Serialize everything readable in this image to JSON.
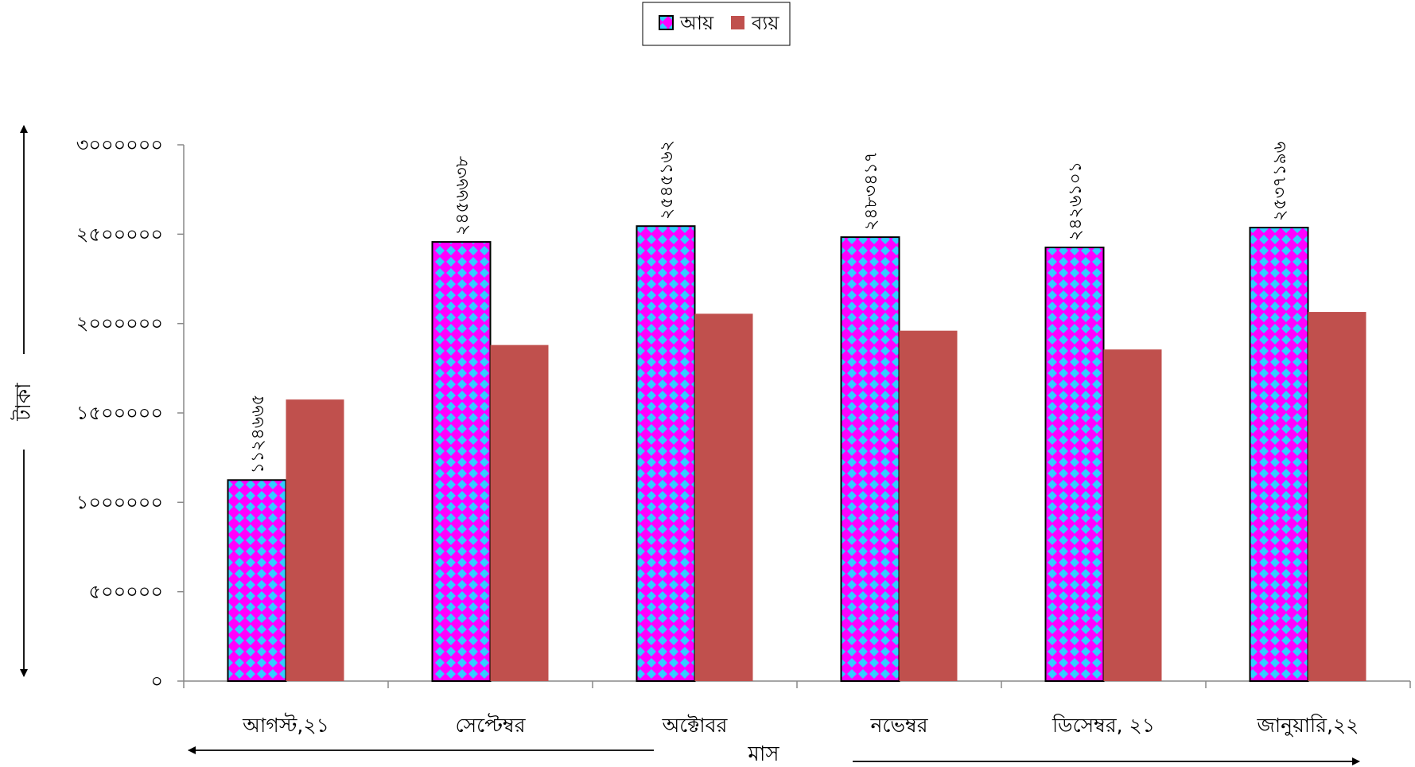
{
  "chart_data": {
    "type": "bar",
    "categories": [
      "আগস্ট,২১",
      "সেপ্টেম্বর",
      "অক্টোবর",
      "নভেম্বর",
      "ডিসেম্বর, ২১",
      "জানুয়ারি,২২"
    ],
    "series": [
      {
        "name": "আয়",
        "values": [
          1124665,
          2456638,
          2545162,
          2483417,
          2426101,
          2537196
        ],
        "data_labels": [
          "১১২৪৬৬৫",
          "২৪৫৬৬৩৮",
          "২৫৪৫১৬২",
          "২৪৮৩৪১৭",
          "২৪২৬১০১",
          "২৫৩৭১৯৬"
        ],
        "color": "#ff00ff",
        "pattern_color": "#33ccff"
      },
      {
        "name": "ব্যয়",
        "values": [
          1575000,
          1880000,
          2055000,
          1960000,
          1855000,
          2065000
        ],
        "color": "#c0504d"
      }
    ],
    "ylim": [
      0,
      3000000
    ],
    "yticks": [
      0,
      500000,
      1000000,
      1500000,
      2000000,
      2500000,
      3000000
    ],
    "ytick_labels": [
      "০",
      "৫০০০০০",
      "১০০০০০০",
      "১৫০০০০০",
      "২০০০০০০",
      "২৫০০০০০",
      "৩০০০০০০"
    ],
    "ylabel": "টাকা",
    "xlabel": "মাস",
    "legend": "top-center",
    "grid": false
  }
}
